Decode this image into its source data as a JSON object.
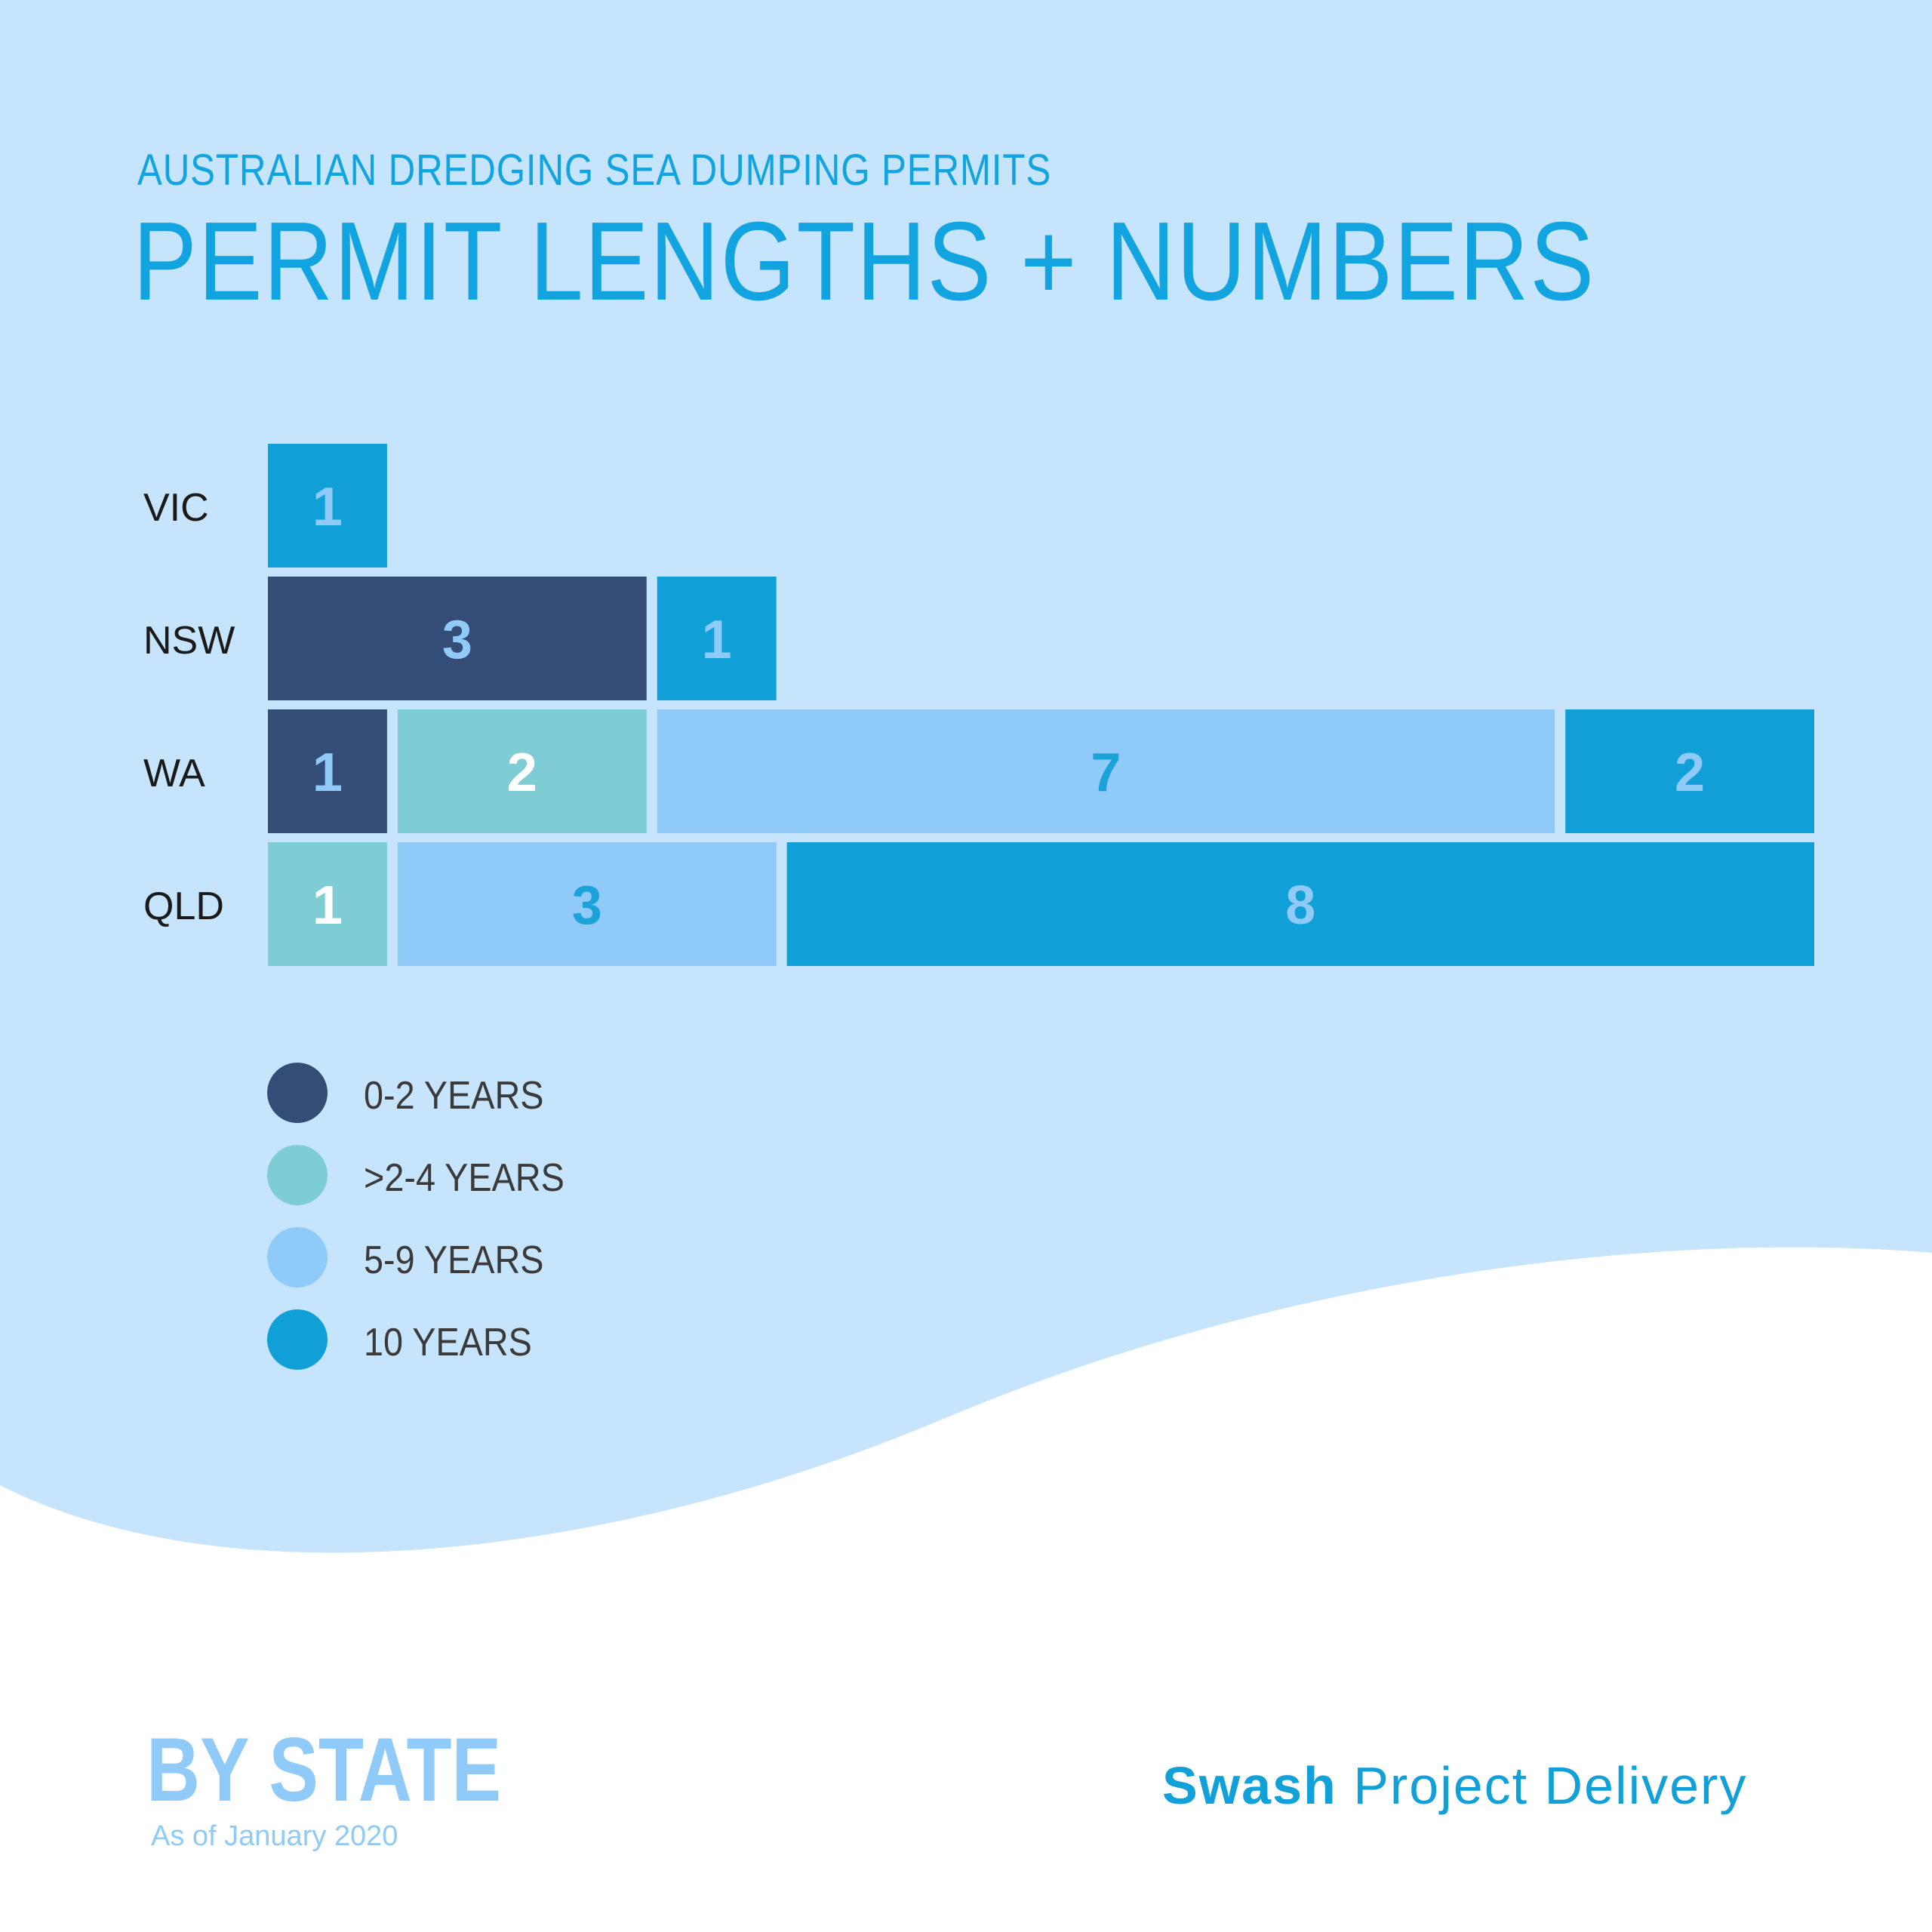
{
  "header": {
    "subtitle": "AUSTRALIAN DREDGING SEA DUMPING PERMITS",
    "title": "PERMIT LENGTHS + NUMBERS"
  },
  "colors": {
    "background_top": "#c6e4fb",
    "background_bottom": "#ffffff",
    "title": "#12a4e0",
    "series": [
      "#334d77",
      "#7ecdd4",
      "#8fcaf8",
      "#119fd8"
    ],
    "segment_label": [
      "#8fcaf8",
      "#ffffff",
      "#1aa2d9",
      "#8fcaf8"
    ]
  },
  "chart_data": {
    "type": "bar",
    "orientation": "horizontal",
    "stacked": true,
    "categories": [
      "VIC",
      "NSW",
      "WA",
      "QLD"
    ],
    "series": [
      {
        "name": "0-2 YEARS",
        "values": [
          0,
          3,
          1,
          0
        ]
      },
      {
        "name": ">2-4 YEARS",
        "values": [
          0,
          0,
          2,
          1
        ]
      },
      {
        "name": "5-9 YEARS",
        "values": [
          0,
          0,
          7,
          3
        ]
      },
      {
        "name": "10 YEARS",
        "values": [
          1,
          1,
          2,
          8
        ]
      }
    ],
    "legend_position": "bottom-left",
    "grid": false
  },
  "legend": {
    "items": [
      {
        "label": "0-2 YEARS"
      },
      {
        "label": ">2-4 YEARS"
      },
      {
        "label": "5-9 YEARS"
      },
      {
        "label": "10 YEARS"
      }
    ]
  },
  "footer": {
    "heading": "BY STATE",
    "note": "As of January 2020",
    "brand_bold": "Swash",
    "brand_rest": "Project Delivery"
  }
}
